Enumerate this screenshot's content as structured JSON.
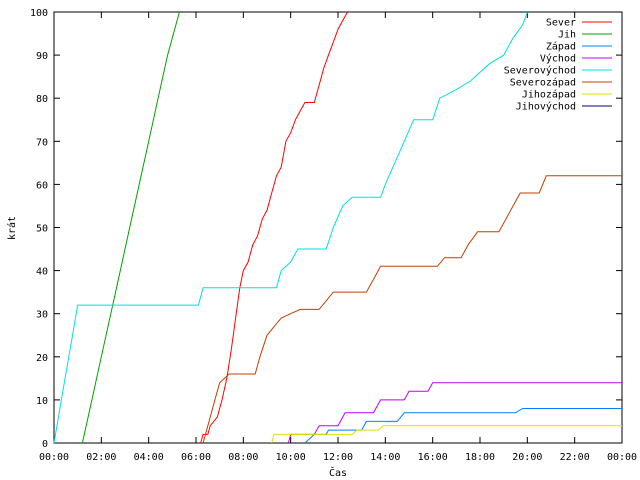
{
  "chart_data": {
    "type": "line",
    "title": "",
    "xlabel": "Čas",
    "ylabel": "krát",
    "xlim": [
      0,
      24
    ],
    "ylim": [
      0,
      100
    ],
    "x_ticks": [
      {
        "value": 0,
        "label": "00:00"
      },
      {
        "value": 2,
        "label": "02:00"
      },
      {
        "value": 4,
        "label": "04:00"
      },
      {
        "value": 6,
        "label": "06:00"
      },
      {
        "value": 8,
        "label": "08:00"
      },
      {
        "value": 10,
        "label": "10:00"
      },
      {
        "value": 12,
        "label": "12:00"
      },
      {
        "value": 14,
        "label": "14:00"
      },
      {
        "value": 16,
        "label": "16:00"
      },
      {
        "value": 18,
        "label": "18:00"
      },
      {
        "value": 20,
        "label": "20:00"
      },
      {
        "value": 22,
        "label": "22:00"
      },
      {
        "value": 24,
        "label": "00:00"
      }
    ],
    "y_ticks": [
      0,
      10,
      20,
      30,
      40,
      50,
      60,
      70,
      80,
      90,
      100
    ],
    "grid": false,
    "legend": "top-right",
    "series": [
      {
        "name": "Sever",
        "color": "#ff0000",
        "points": [
          [
            6.2,
            0
          ],
          [
            6.3,
            2
          ],
          [
            6.5,
            2
          ],
          [
            6.6,
            4
          ],
          [
            6.9,
            6
          ],
          [
            7.1,
            10
          ],
          [
            7.3,
            15
          ],
          [
            7.5,
            22
          ],
          [
            7.7,
            30
          ],
          [
            7.85,
            36
          ],
          [
            8.0,
            40
          ],
          [
            8.2,
            42
          ],
          [
            8.4,
            46
          ],
          [
            8.6,
            48
          ],
          [
            8.8,
            52
          ],
          [
            9.0,
            54
          ],
          [
            9.2,
            58
          ],
          [
            9.4,
            62
          ],
          [
            9.6,
            64
          ],
          [
            9.8,
            70
          ],
          [
            10.0,
            72
          ],
          [
            10.2,
            75
          ],
          [
            10.4,
            77
          ],
          [
            10.6,
            79
          ],
          [
            11.0,
            79
          ],
          [
            11.2,
            83
          ],
          [
            11.4,
            87
          ],
          [
            11.6,
            90
          ],
          [
            11.8,
            93
          ],
          [
            12.0,
            96
          ],
          [
            12.2,
            98
          ],
          [
            12.4,
            100
          ]
        ]
      },
      {
        "name": "Jih",
        "color": "#00a000",
        "points": [
          [
            1.2,
            0
          ],
          [
            1.6,
            10
          ],
          [
            2.0,
            20
          ],
          [
            2.4,
            30
          ],
          [
            2.8,
            40
          ],
          [
            3.2,
            50
          ],
          [
            3.6,
            60
          ],
          [
            4.0,
            70
          ],
          [
            4.4,
            80
          ],
          [
            4.8,
            90
          ],
          [
            5.1,
            96
          ],
          [
            5.3,
            100
          ]
        ]
      },
      {
        "name": "Západ",
        "color": "#0080ff",
        "points": [
          [
            10.6,
            0
          ],
          [
            10.8,
            1
          ],
          [
            11.0,
            2
          ],
          [
            11.5,
            2
          ],
          [
            11.6,
            3
          ],
          [
            13.0,
            3
          ],
          [
            13.2,
            5
          ],
          [
            14.5,
            5
          ],
          [
            14.8,
            7
          ],
          [
            19.5,
            7
          ],
          [
            19.8,
            8
          ],
          [
            24.0,
            8
          ]
        ]
      },
      {
        "name": "Východ",
        "color": "#c000ff",
        "points": [
          [
            9.9,
            0
          ],
          [
            10.0,
            2
          ],
          [
            11.0,
            2
          ],
          [
            11.2,
            4
          ],
          [
            12.0,
            4
          ],
          [
            12.3,
            7
          ],
          [
            13.5,
            7
          ],
          [
            13.8,
            10
          ],
          [
            14.8,
            10
          ],
          [
            15.0,
            12
          ],
          [
            15.8,
            12
          ],
          [
            16.0,
            14
          ],
          [
            24.0,
            14
          ]
        ]
      },
      {
        "name": "Severovýchod",
        "color": "#00e0e0",
        "points": [
          [
            0.0,
            0
          ],
          [
            0.25,
            8
          ],
          [
            0.5,
            16
          ],
          [
            0.75,
            24
          ],
          [
            1.0,
            32
          ],
          [
            6.1,
            32
          ],
          [
            6.3,
            36
          ],
          [
            9.4,
            36
          ],
          [
            9.6,
            40
          ],
          [
            10.0,
            42
          ],
          [
            10.3,
            45
          ],
          [
            11.5,
            45
          ],
          [
            11.8,
            50
          ],
          [
            12.2,
            55
          ],
          [
            12.6,
            57
          ],
          [
            13.8,
            57
          ],
          [
            14.0,
            60
          ],
          [
            14.4,
            65
          ],
          [
            14.8,
            70
          ],
          [
            15.2,
            75
          ],
          [
            16.0,
            75
          ],
          [
            16.3,
            80
          ],
          [
            17.0,
            82
          ],
          [
            17.6,
            84
          ],
          [
            18.0,
            86
          ],
          [
            18.4,
            88
          ],
          [
            19.0,
            90
          ],
          [
            19.4,
            94
          ],
          [
            19.8,
            97
          ],
          [
            20.0,
            100
          ]
        ]
      },
      {
        "name": "Severozápad",
        "color": "#c04000",
        "points": [
          [
            6.3,
            0
          ],
          [
            6.4,
            2
          ],
          [
            6.6,
            6
          ],
          [
            6.8,
            10
          ],
          [
            7.0,
            14
          ],
          [
            7.2,
            15
          ],
          [
            7.4,
            16
          ],
          [
            8.5,
            16
          ],
          [
            8.7,
            20
          ],
          [
            9.0,
            25
          ],
          [
            9.3,
            27
          ],
          [
            9.6,
            29
          ],
          [
            10.0,
            30
          ],
          [
            10.4,
            31
          ],
          [
            11.2,
            31
          ],
          [
            11.5,
            33
          ],
          [
            11.8,
            35
          ],
          [
            13.2,
            35
          ],
          [
            13.5,
            38
          ],
          [
            13.8,
            41
          ],
          [
            16.2,
            41
          ],
          [
            16.5,
            43
          ],
          [
            17.2,
            43
          ],
          [
            17.5,
            46
          ],
          [
            17.9,
            49
          ],
          [
            18.8,
            49
          ],
          [
            19.1,
            52
          ],
          [
            19.4,
            55
          ],
          [
            19.7,
            58
          ],
          [
            20.5,
            58
          ],
          [
            20.8,
            62
          ],
          [
            24.0,
            62
          ]
        ]
      },
      {
        "name": "Jihozápad",
        "color": "#e0e000",
        "points": [
          [
            9.2,
            0
          ],
          [
            9.3,
            2
          ],
          [
            10.5,
            2
          ],
          [
            10.7,
            2
          ],
          [
            11.0,
            2
          ],
          [
            11.2,
            2
          ],
          [
            12.6,
            2
          ],
          [
            12.8,
            3
          ],
          [
            13.7,
            3
          ],
          [
            13.9,
            4
          ],
          [
            24.0,
            4
          ]
        ]
      },
      {
        "name": "Jihovýchod",
        "color": "#000080",
        "points": []
      }
    ]
  }
}
